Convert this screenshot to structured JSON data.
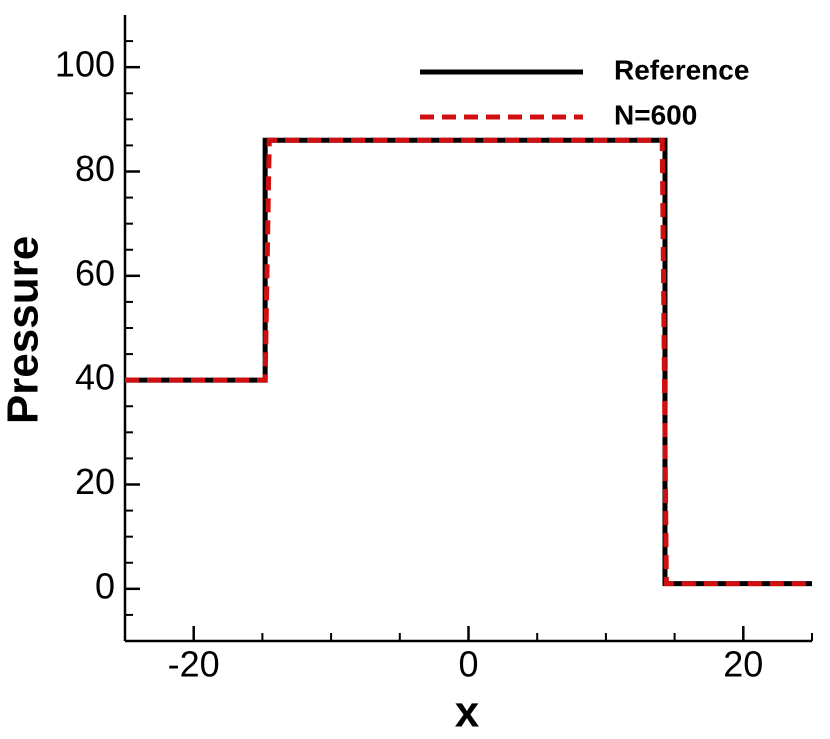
{
  "chart_data": {
    "type": "line",
    "xlabel": "x",
    "ylabel": "Pressure",
    "xlim": [
      -25,
      25
    ],
    "ylim": [
      -10,
      110
    ],
    "xticks": [
      -20,
      0,
      20
    ],
    "yticks": [
      0,
      20,
      40,
      60,
      80,
      100
    ],
    "xminorticks": [
      -25,
      -15,
      -10,
      -5,
      5,
      10,
      15,
      25
    ],
    "yminorticks": [
      -5,
      5,
      10,
      15,
      25,
      30,
      35,
      45,
      50,
      55,
      65,
      70,
      75,
      85,
      90,
      95,
      105
    ],
    "legend": "upper right",
    "series": [
      {
        "name": "Reference",
        "color": "#000000",
        "dash": false,
        "x": [
          -25,
          -14.8,
          -14.8,
          14.3,
          14.3,
          25
        ],
        "values": [
          40,
          40,
          86,
          86,
          1,
          1
        ]
      },
      {
        "name": "N=600",
        "color": "#d01010",
        "dash": true,
        "x": [
          -25,
          -14.8,
          -14.5,
          14.1,
          14.4,
          25
        ],
        "values": [
          40,
          40,
          86,
          86,
          1,
          1
        ]
      }
    ]
  }
}
